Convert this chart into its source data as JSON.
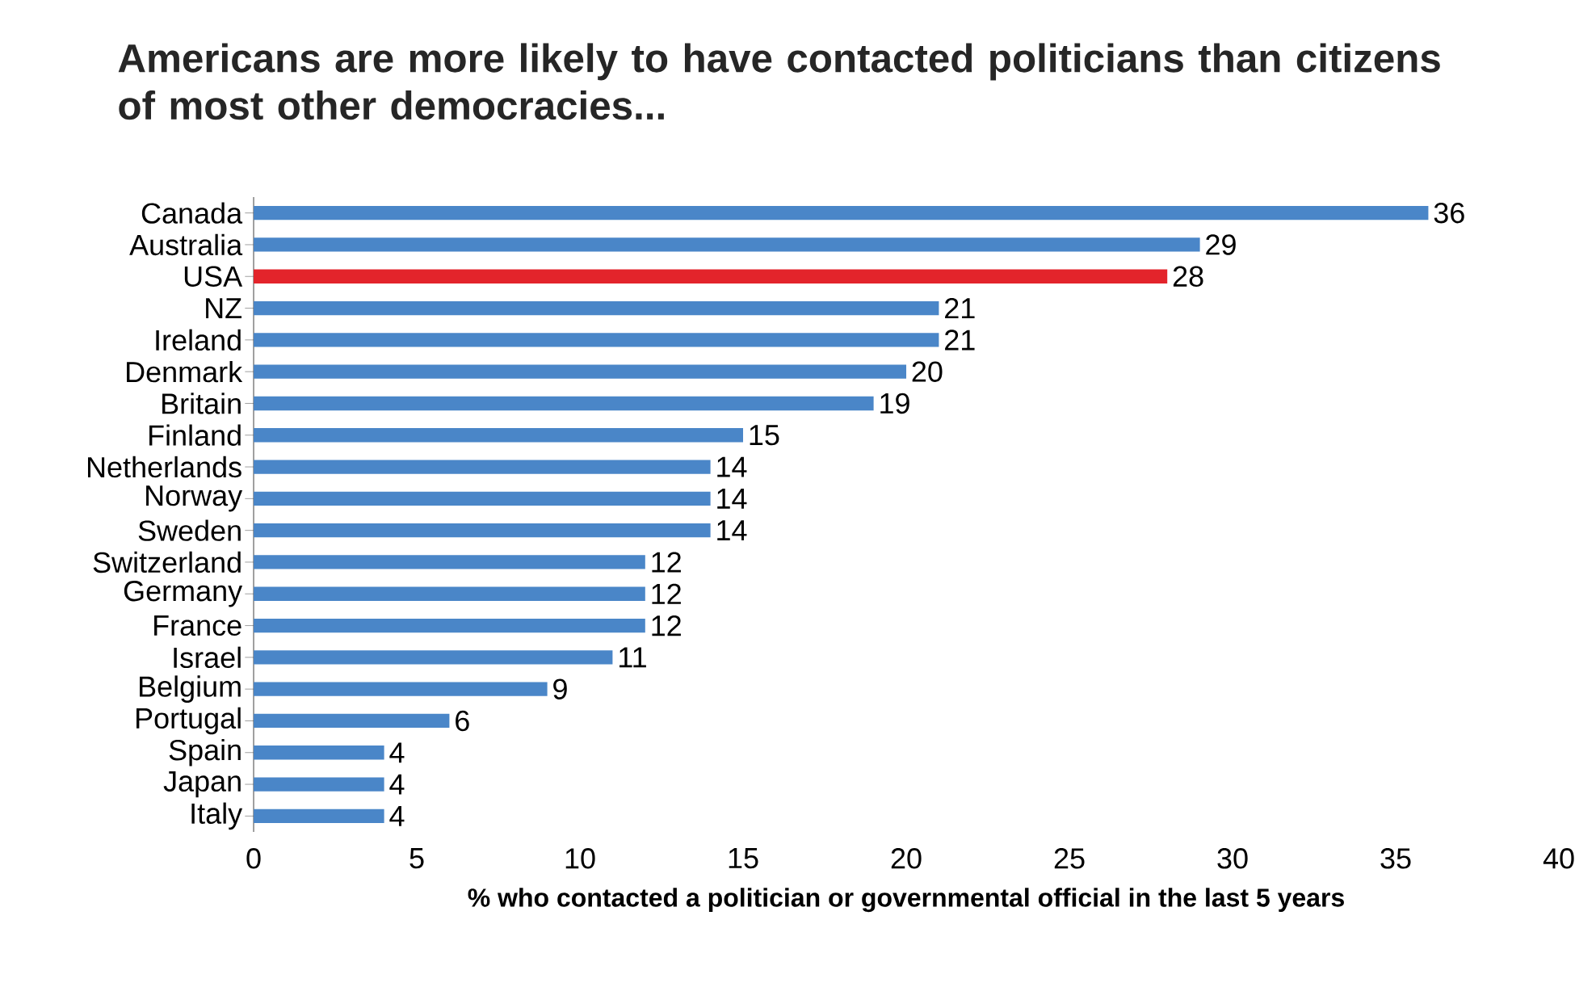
{
  "chart_data": {
    "type": "bar",
    "orientation": "horizontal",
    "title": "Americans are more likely to have contacted politicians than citizens of most other democracies...",
    "xlabel": "% who contacted a politician or governmental official in the last 5 years",
    "categories": [
      "Canada",
      "Australia",
      "USA",
      "NZ",
      "Ireland",
      "Denmark",
      "Britain",
      "Finland",
      "Netherlands",
      "Norway",
      "Sweden",
      "Switzerland",
      "Germany",
      "France",
      "Israel",
      "Belgium",
      "Portugal",
      "Spain",
      "Japan",
      "Italy"
    ],
    "values": [
      36,
      29,
      28,
      21,
      21,
      20,
      19,
      15,
      14,
      14,
      14,
      12,
      12,
      12,
      11,
      9,
      6,
      4,
      4,
      4
    ],
    "colors": [
      "#4a86c8",
      "#4a86c8",
      "#e3242b",
      "#4a86c8",
      "#4a86c8",
      "#4a86c8",
      "#4a86c8",
      "#4a86c8",
      "#4a86c8",
      "#4a86c8",
      "#4a86c8",
      "#4a86c8",
      "#4a86c8",
      "#4a86c8",
      "#4a86c8",
      "#4a86c8",
      "#4a86c8",
      "#4a86c8",
      "#4a86c8",
      "#4a86c8"
    ],
    "xlim": [
      0,
      40
    ],
    "xticks": [
      0,
      5,
      10,
      15,
      20,
      25,
      30,
      35,
      40
    ],
    "data_labels": true,
    "grid": false
  }
}
